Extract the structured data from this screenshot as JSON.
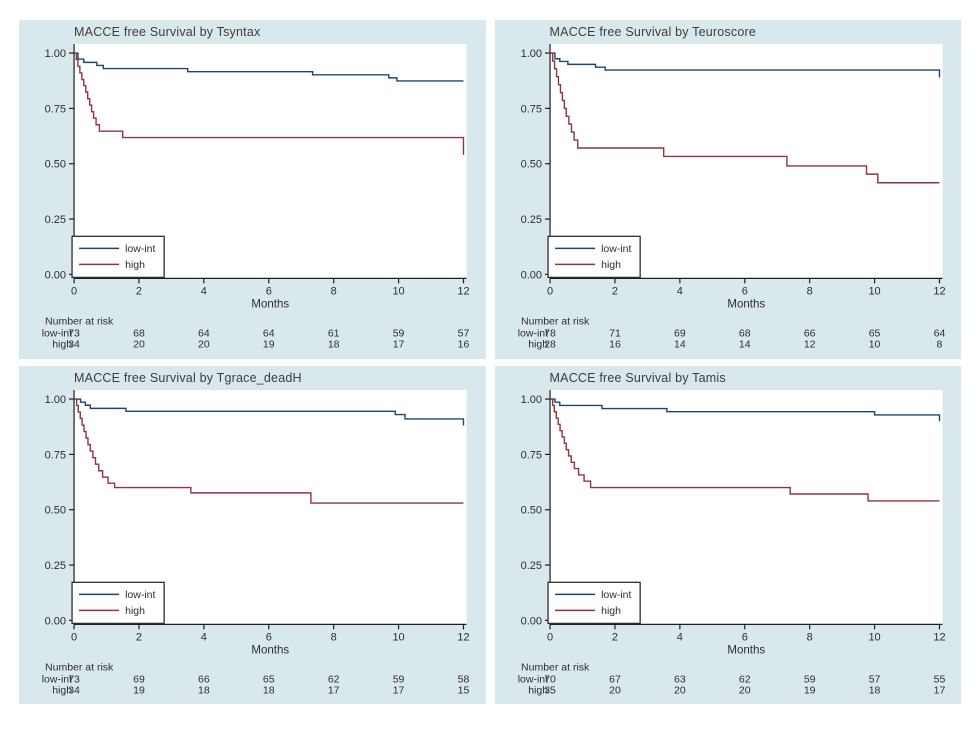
{
  "figure": {
    "bg_color": "#d9e8ed",
    "plot_bg": "#ffffff",
    "axis_color": "#1f1f1f",
    "text_color": "#2e2e2e",
    "legend_border_color": "#2f2f2f",
    "series_colors": {
      "low-int": "#1a476f",
      "high": "#90353b"
    },
    "x_label": "Months",
    "x_ticks": [
      "0",
      "2",
      "4",
      "6",
      "8",
      "10",
      "12"
    ],
    "y_ticks": [
      "0.00",
      "0.25",
      "0.50",
      "0.75",
      "1.00"
    ],
    "xlim": [
      0,
      12
    ],
    "ylim": [
      0,
      1
    ],
    "risk_header": "Number at risk",
    "legend_labels": [
      "low-int",
      "high"
    ]
  },
  "chart_data": [
    {
      "type": "line",
      "title": "MACCE free Survival by Tsyntax",
      "xlabel": "Months",
      "xlim": [
        0,
        12
      ],
      "ylim": [
        0,
        1
      ],
      "legend_position": "bottom-left-inside",
      "series": [
        {
          "name": "low-int",
          "steps": [
            [
              0,
              1.0
            ],
            [
              0.12,
              0.973
            ],
            [
              0.3,
              0.958
            ],
            [
              0.7,
              0.944
            ],
            [
              0.9,
              0.93
            ],
            [
              3.5,
              0.916
            ],
            [
              7.35,
              0.902
            ],
            [
              9.7,
              0.888
            ],
            [
              9.95,
              0.874
            ],
            [
              12,
              0.874
            ]
          ]
        },
        {
          "name": "high",
          "steps": [
            [
              0,
              1.0
            ],
            [
              0.07,
              0.97
            ],
            [
              0.12,
              0.94
            ],
            [
              0.18,
              0.91
            ],
            [
              0.24,
              0.88
            ],
            [
              0.3,
              0.853
            ],
            [
              0.36,
              0.824
            ],
            [
              0.42,
              0.794
            ],
            [
              0.48,
              0.765
            ],
            [
              0.54,
              0.735
            ],
            [
              0.6,
              0.706
            ],
            [
              0.68,
              0.676
            ],
            [
              0.78,
              0.647
            ],
            [
              1.5,
              0.618
            ],
            [
              11.9,
              0.618
            ],
            [
              12,
              0.54
            ]
          ]
        }
      ],
      "number_at_risk": [
        {
          "label": "low-int",
          "values": [
            73,
            68,
            64,
            64,
            61,
            59,
            57
          ]
        },
        {
          "label": "high",
          "values": [
            34,
            20,
            20,
            19,
            18,
            17,
            16
          ]
        }
      ]
    },
    {
      "type": "line",
      "title": "MACCE free Survival by Teuroscore",
      "xlabel": "Months",
      "xlim": [
        0,
        12
      ],
      "ylim": [
        0,
        1
      ],
      "legend_position": "bottom-left-inside",
      "series": [
        {
          "name": "low-int",
          "steps": [
            [
              0,
              1.0
            ],
            [
              0.15,
              0.974
            ],
            [
              0.3,
              0.962
            ],
            [
              0.55,
              0.949
            ],
            [
              1.4,
              0.936
            ],
            [
              1.7,
              0.923
            ],
            [
              11.9,
              0.923
            ],
            [
              12,
              0.89
            ]
          ]
        },
        {
          "name": "high",
          "steps": [
            [
              0,
              1.0
            ],
            [
              0.08,
              0.964
            ],
            [
              0.14,
              0.929
            ],
            [
              0.2,
              0.893
            ],
            [
              0.26,
              0.857
            ],
            [
              0.32,
              0.821
            ],
            [
              0.38,
              0.786
            ],
            [
              0.44,
              0.75
            ],
            [
              0.5,
              0.714
            ],
            [
              0.58,
              0.679
            ],
            [
              0.66,
              0.643
            ],
            [
              0.74,
              0.607
            ],
            [
              0.85,
              0.571
            ],
            [
              3.5,
              0.533
            ],
            [
              7.3,
              0.49
            ],
            [
              9.75,
              0.453
            ],
            [
              10.1,
              0.414
            ],
            [
              12,
              0.414
            ]
          ]
        }
      ],
      "number_at_risk": [
        {
          "label": "low-int",
          "values": [
            78,
            71,
            69,
            68,
            66,
            65,
            64
          ]
        },
        {
          "label": "high",
          "values": [
            28,
            16,
            14,
            14,
            12,
            10,
            8
          ]
        }
      ]
    },
    {
      "type": "line",
      "title": "MACCE free Survival by Tgrace_deadH",
      "xlabel": "Months",
      "xlim": [
        0,
        12
      ],
      "ylim": [
        0,
        1
      ],
      "legend_position": "bottom-left-inside",
      "series": [
        {
          "name": "low-int",
          "steps": [
            [
              0,
              1.0
            ],
            [
              0.2,
              0.986
            ],
            [
              0.35,
              0.972
            ],
            [
              0.5,
              0.958
            ],
            [
              1.6,
              0.945
            ],
            [
              9.9,
              0.93
            ],
            [
              10.2,
              0.91
            ],
            [
              11.9,
              0.91
            ],
            [
              12,
              0.88
            ]
          ]
        },
        {
          "name": "high",
          "steps": [
            [
              0,
              1.0
            ],
            [
              0.08,
              0.971
            ],
            [
              0.13,
              0.941
            ],
            [
              0.19,
              0.912
            ],
            [
              0.25,
              0.882
            ],
            [
              0.31,
              0.853
            ],
            [
              0.37,
              0.824
            ],
            [
              0.43,
              0.794
            ],
            [
              0.5,
              0.765
            ],
            [
              0.58,
              0.735
            ],
            [
              0.66,
              0.706
            ],
            [
              0.76,
              0.676
            ],
            [
              0.88,
              0.647
            ],
            [
              1.05,
              0.62
            ],
            [
              1.25,
              0.6
            ],
            [
              3.6,
              0.576
            ],
            [
              7.3,
              0.53
            ],
            [
              12,
              0.53
            ]
          ]
        }
      ],
      "number_at_risk": [
        {
          "label": "low-int",
          "values": [
            73,
            69,
            66,
            65,
            62,
            59,
            58
          ]
        },
        {
          "label": "high",
          "values": [
            34,
            19,
            18,
            18,
            17,
            17,
            15
          ]
        }
      ]
    },
    {
      "type": "line",
      "title": "MACCE free Survival by Tamis",
      "xlabel": "Months",
      "xlim": [
        0,
        12
      ],
      "ylim": [
        0,
        1
      ],
      "legend_position": "bottom-left-inside",
      "series": [
        {
          "name": "low-int",
          "steps": [
            [
              0,
              1.0
            ],
            [
              0.15,
              0.986
            ],
            [
              0.3,
              0.971
            ],
            [
              1.6,
              0.957
            ],
            [
              3.6,
              0.943
            ],
            [
              10,
              0.928
            ],
            [
              11.9,
              0.928
            ],
            [
              12,
              0.9
            ]
          ]
        },
        {
          "name": "high",
          "steps": [
            [
              0,
              1.0
            ],
            [
              0.08,
              0.971
            ],
            [
              0.13,
              0.943
            ],
            [
              0.19,
              0.914
            ],
            [
              0.25,
              0.886
            ],
            [
              0.31,
              0.857
            ],
            [
              0.37,
              0.829
            ],
            [
              0.44,
              0.8
            ],
            [
              0.5,
              0.771
            ],
            [
              0.57,
              0.743
            ],
            [
              0.65,
              0.714
            ],
            [
              0.75,
              0.686
            ],
            [
              0.88,
              0.657
            ],
            [
              1.05,
              0.629
            ],
            [
              1.25,
              0.6
            ],
            [
              7.4,
              0.571
            ],
            [
              9.8,
              0.54
            ],
            [
              12,
              0.54
            ]
          ]
        }
      ],
      "number_at_risk": [
        {
          "label": "low-int",
          "values": [
            70,
            67,
            63,
            62,
            59,
            57,
            55
          ]
        },
        {
          "label": "high",
          "values": [
            35,
            20,
            20,
            20,
            19,
            18,
            17
          ]
        }
      ]
    }
  ]
}
